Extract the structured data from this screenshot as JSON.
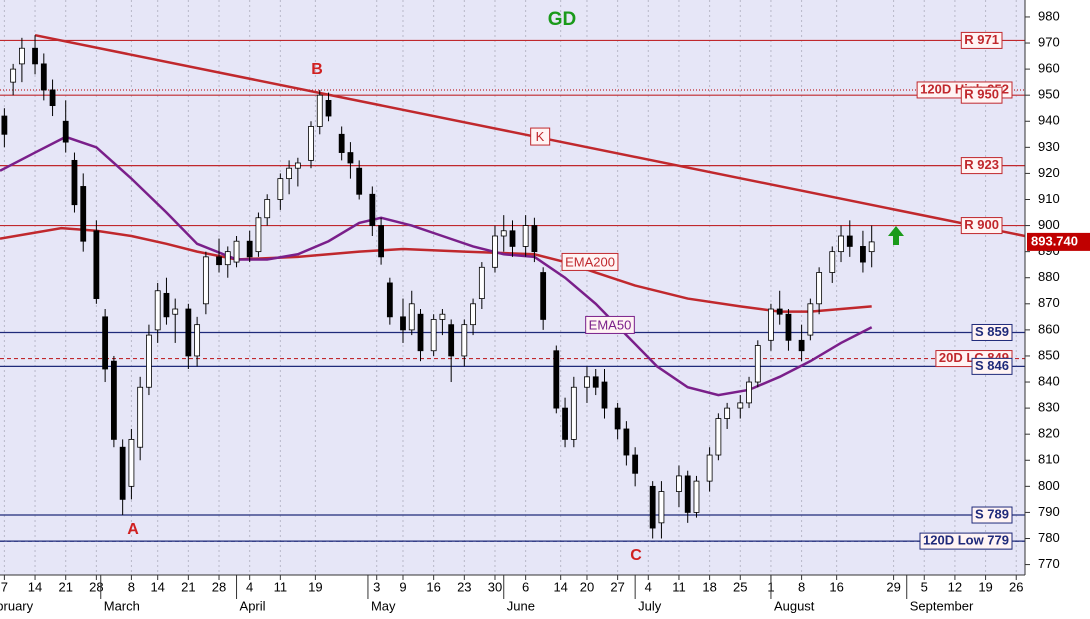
{
  "chart_data": {
    "type": "candlestick",
    "title": "GD",
    "x": [
      "2-7",
      "2-9",
      "2-11",
      "2-14",
      "2-16",
      "2-18",
      "2-21",
      "2-23",
      "2-25",
      "2-28",
      "3-2",
      "3-4",
      "3-6",
      "3-8",
      "3-10",
      "3-12",
      "3-14",
      "3-16",
      "3-18",
      "3-21",
      "3-23",
      "3-25",
      "3-28",
      "3-30",
      "4-1",
      "4-4",
      "4-6",
      "4-8",
      "4-11",
      "4-13",
      "4-15",
      "4-18",
      "4-20",
      "4-22",
      "4-25",
      "4-27",
      "4-29",
      "5-2",
      "5-4",
      "5-6",
      "5-9",
      "5-11",
      "5-13",
      "5-16",
      "5-18",
      "5-20",
      "5-23",
      "5-25",
      "5-27",
      "5-30",
      "6-1",
      "6-3",
      "6-6",
      "6-8",
      "6-10",
      "6-13",
      "6-15",
      "6-17",
      "6-20",
      "6-22",
      "6-24",
      "6-27",
      "6-29",
      "7-1",
      "7-5",
      "7-7",
      "7-11",
      "7-13",
      "7-15",
      "7-18",
      "7-20",
      "7-22",
      "7-25",
      "7-27",
      "7-29",
      "8-1",
      "8-3",
      "8-5",
      "8-8",
      "8-10",
      "8-12",
      "8-15",
      "8-17",
      "8-19",
      "8-22",
      "8-24"
    ],
    "open": [
      942,
      955,
      962,
      968,
      962,
      952,
      940,
      925,
      915,
      898,
      865,
      848,
      815,
      800,
      815,
      838,
      860,
      874,
      866,
      868,
      850,
      870,
      888,
      885,
      886,
      894,
      890,
      903,
      910,
      918,
      922,
      925,
      938,
      948,
      935,
      928,
      922,
      912,
      900,
      878,
      865,
      860,
      866,
      852,
      864,
      862,
      850,
      862,
      872,
      884,
      896,
      898,
      892,
      900,
      882,
      852,
      830,
      818,
      838,
      842,
      840,
      830,
      822,
      812,
      800,
      786,
      798,
      804,
      790,
      802,
      812,
      826,
      830,
      832,
      840,
      856,
      868,
      866,
      856,
      858,
      870,
      882,
      890,
      896,
      892,
      890
    ],
    "high": [
      945,
      962,
      972,
      973,
      966,
      956,
      948,
      928,
      920,
      902,
      868,
      850,
      818,
      822,
      842,
      862,
      878,
      880,
      872,
      870,
      865,
      890,
      895,
      892,
      896,
      898,
      905,
      912,
      920,
      925,
      926,
      940,
      952,
      951,
      938,
      932,
      925,
      915,
      903,
      880,
      872,
      875,
      868,
      866,
      868,
      864,
      864,
      872,
      886,
      900,
      904,
      902,
      904,
      903,
      884,
      854,
      834,
      842,
      846,
      845,
      845,
      832,
      825,
      815,
      802,
      802,
      808,
      806,
      804,
      815,
      828,
      832,
      835,
      842,
      856,
      870,
      875,
      868,
      862,
      872,
      884,
      892,
      900,
      902,
      898,
      900
    ],
    "low": [
      930,
      950,
      955,
      958,
      948,
      942,
      928,
      905,
      890,
      870,
      840,
      815,
      789,
      795,
      810,
      835,
      855,
      862,
      855,
      845,
      846,
      866,
      882,
      880,
      884,
      886,
      888,
      900,
      906,
      912,
      915,
      922,
      935,
      940,
      925,
      918,
      910,
      896,
      885,
      862,
      855,
      858,
      848,
      850,
      858,
      840,
      846,
      858,
      868,
      882,
      890,
      888,
      888,
      886,
      860,
      828,
      815,
      815,
      832,
      835,
      826,
      818,
      808,
      800,
      780,
      780,
      792,
      786,
      788,
      798,
      810,
      822,
      826,
      830,
      838,
      852,
      862,
      852,
      848,
      856,
      866,
      878,
      886,
      888,
      882,
      884
    ],
    "close": [
      935,
      960,
      968,
      962,
      952,
      946,
      932,
      908,
      894,
      872,
      845,
      818,
      795,
      818,
      838,
      858,
      875,
      865,
      868,
      850,
      862,
      888,
      885,
      890,
      894,
      888,
      903,
      910,
      918,
      922,
      924,
      938,
      950,
      942,
      928,
      924,
      912,
      900,
      888,
      865,
      860,
      870,
      852,
      864,
      866,
      850,
      862,
      870,
      884,
      896,
      898,
      892,
      900,
      890,
      864,
      830,
      818,
      838,
      842,
      838,
      830,
      822,
      812,
      805,
      784,
      798,
      804,
      790,
      802,
      812,
      826,
      830,
      832,
      840,
      854,
      868,
      866,
      856,
      852,
      870,
      882,
      890,
      896,
      892,
      886,
      893.74
    ],
    "up_color": "#ffffff",
    "down_color": "#000000",
    "lines": [
      {
        "name": "EMA200",
        "color": "#c0282d",
        "x": [
          "2-6",
          "2-20",
          "2-28",
          "3-8",
          "3-16",
          "3-23",
          "4-1",
          "4-15",
          "4-29",
          "5-9",
          "5-23",
          "6-8",
          "6-15",
          "6-22",
          "7-1",
          "7-13",
          "7-25",
          "8-3",
          "8-10",
          "8-17",
          "8-24"
        ],
        "values": [
          895,
          899,
          898,
          896,
          893,
          890,
          887,
          888,
          890,
          891,
          890,
          889,
          886,
          882,
          877,
          872,
          869,
          867,
          867,
          868,
          869
        ]
      },
      {
        "name": "EMA50",
        "color": "#7a1f8a",
        "x": [
          "2-6",
          "2-14",
          "2-21",
          "2-28",
          "3-8",
          "3-16",
          "3-23",
          "4-1",
          "4-8",
          "4-15",
          "4-22",
          "4-29",
          "5-4",
          "5-11",
          "5-18",
          "5-25",
          "6-1",
          "6-8",
          "6-15",
          "6-22",
          "6-29",
          "7-6",
          "7-13",
          "7-20",
          "7-27",
          "8-3",
          "8-10",
          "8-17",
          "8-24"
        ],
        "values": [
          921,
          928,
          934,
          930,
          918,
          905,
          893,
          887,
          887,
          889,
          894,
          901,
          903,
          900,
          896,
          892,
          889,
          888,
          880,
          870,
          858,
          846,
          838,
          835,
          837,
          842,
          848,
          855,
          861
        ]
      }
    ],
    "trendline": {
      "name": "K",
      "color": "#c0282d",
      "x": [
        "2-14",
        "9-28"
      ],
      "values": [
        973,
        896
      ]
    },
    "levels": [
      {
        "label": "R 971",
        "value": 971,
        "color": "#c0282d",
        "style": "solid"
      },
      {
        "label": "120D High 952",
        "value": 952,
        "color": "#c0282d",
        "style": "dotted"
      },
      {
        "label": "R 950",
        "value": 950,
        "color": "#c0282d",
        "style": "solid"
      },
      {
        "label": "R 923",
        "value": 923,
        "color": "#c0282d",
        "style": "solid"
      },
      {
        "label": "R 900",
        "value": 900,
        "color": "#c0282d",
        "style": "solid"
      },
      {
        "label": "S 859",
        "value": 859,
        "color": "#1f2a7a",
        "style": "solid"
      },
      {
        "label": "20D LC 849",
        "value": 849,
        "color": "#c0282d",
        "style": "dashed"
      },
      {
        "label": "S 846",
        "value": 846,
        "color": "#1f2a7a",
        "style": "solid"
      },
      {
        "label": "S 789",
        "value": 789,
        "color": "#1f2a7a",
        "style": "solid"
      },
      {
        "label": "S 779",
        "value": 779,
        "color": "#1f2a7a",
        "style": "solid"
      },
      {
        "label": "120D Low 779",
        "value": 779,
        "color": "#1f2a7a",
        "style": "dashed"
      }
    ],
    "last_price": {
      "value": 893.74,
      "label": "893.740"
    },
    "annotations": [
      "A",
      "B",
      "C"
    ],
    "ylim": [
      766,
      986.5
    ],
    "yticks": [
      770,
      780,
      790,
      800,
      810,
      820,
      830,
      840,
      850,
      860,
      870,
      880,
      890,
      900,
      910,
      920,
      930,
      940,
      950,
      960,
      970,
      980
    ],
    "xlim": [
      "2-6",
      "9-28"
    ],
    "xticks": [
      {
        "value": "2-7",
        "label": "7"
      },
      {
        "value": "2-14",
        "label": "14"
      },
      {
        "value": "2-21",
        "label": "21"
      },
      {
        "value": "2-28",
        "label": "28"
      },
      {
        "value": "3-8",
        "label": "8"
      },
      {
        "value": "3-14",
        "label": "14"
      },
      {
        "value": "3-21",
        "label": "21"
      },
      {
        "value": "3-28",
        "label": "28"
      },
      {
        "value": "4-4",
        "label": "4"
      },
      {
        "value": "4-11",
        "label": "11"
      },
      {
        "value": "4-19",
        "label": "19"
      },
      {
        "value": "5-3",
        "label": "3"
      },
      {
        "value": "5-9",
        "label": "9"
      },
      {
        "value": "5-16",
        "label": "16"
      },
      {
        "value": "5-23",
        "label": "23"
      },
      {
        "value": "5-30",
        "label": "30"
      },
      {
        "value": "6-6",
        "label": "6"
      },
      {
        "value": "6-14",
        "label": "14"
      },
      {
        "value": "6-20",
        "label": "20"
      },
      {
        "value": "6-27",
        "label": "27"
      },
      {
        "value": "7-4",
        "label": "4"
      },
      {
        "value": "7-11",
        "label": "11"
      },
      {
        "value": "7-18",
        "label": "18"
      },
      {
        "value": "7-25",
        "label": "25"
      },
      {
        "value": "8-1",
        "label": "1"
      },
      {
        "value": "8-8",
        "label": "8"
      },
      {
        "value": "8-16",
        "label": "16"
      },
      {
        "value": "8-29",
        "label": "29"
      },
      {
        "value": "9-5",
        "label": "5"
      },
      {
        "value": "9-12",
        "label": "12"
      },
      {
        "value": "9-19",
        "label": "19"
      },
      {
        "value": "9-26",
        "label": "26"
      }
    ],
    "month_ticks": [
      {
        "value": "2-1",
        "label": "February"
      },
      {
        "value": "3-1",
        "label": "March"
      },
      {
        "value": "4-1",
        "label": "April"
      },
      {
        "value": "5-1",
        "label": "May"
      },
      {
        "value": "6-1",
        "label": "June"
      },
      {
        "value": "7-1",
        "label": "July"
      },
      {
        "value": "8-1",
        "label": "August"
      },
      {
        "value": "9-1",
        "label": "September"
      }
    ],
    "grid": true
  }
}
